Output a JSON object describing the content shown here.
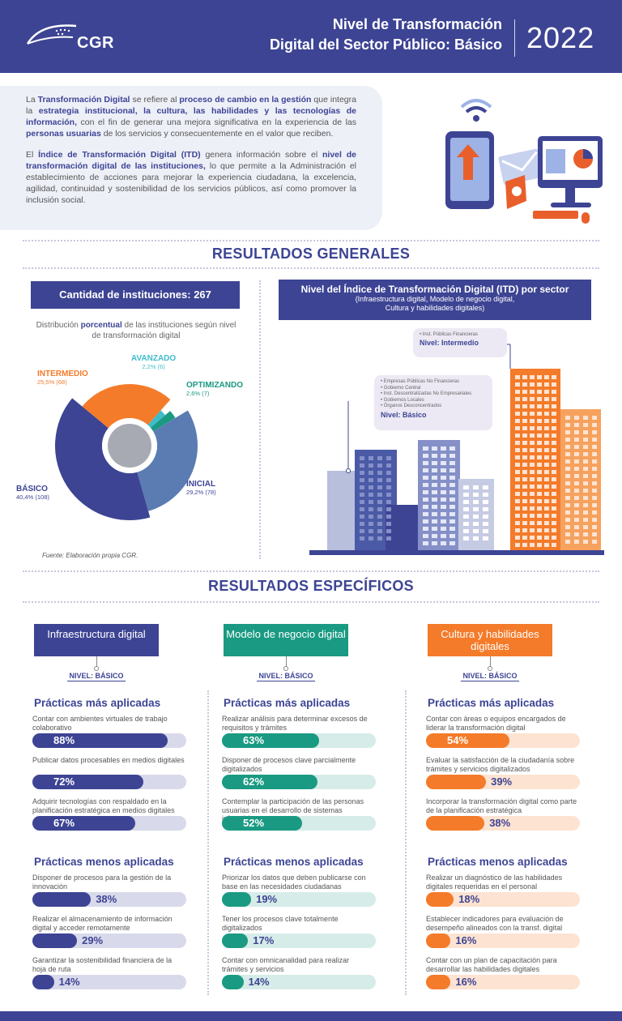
{
  "header": {
    "logo_text": "CGR",
    "title_line1": "Nivel de Transformación",
    "title_line2": "Digital del Sector Público: Básico",
    "year": "2022"
  },
  "intro": {
    "p1": [
      {
        "t": "La ",
        "b": false
      },
      {
        "t": "Transformación Digital",
        "b": true
      },
      {
        "t": " se refiere al ",
        "b": false
      },
      {
        "t": "proceso de cambio en la gestión",
        "b": true
      },
      {
        "t": " que integra la ",
        "b": false
      },
      {
        "t": "estrategia institucional, la cultura, las habilidades y las tecnologías de información,",
        "b": true
      },
      {
        "t": " con el fin de generar una mejora significativa en la experiencia de las ",
        "b": false
      },
      {
        "t": "personas usuarias",
        "b": true
      },
      {
        "t": " de los servicios y consecuentemente en el valor que reciben.",
        "b": false
      }
    ],
    "p2": [
      {
        "t": "El ",
        "b": false
      },
      {
        "t": "Índice de Transformación Digital (ITD)",
        "b": true
      },
      {
        "t": " genera información sobre el ",
        "b": false
      },
      {
        "t": "nivel de transformación digital de las instituciones,",
        "b": true
      },
      {
        "t": " lo que permite a la Administración el establecimiento de acciones para mejorar la experiencia ciudadana, la excelencia, agilidad, continuidad y sostenibilidad de los servicios públicos, así como promover la inclusión social.",
        "b": false
      }
    ]
  },
  "general": {
    "title": "RESULTADOS GENERALES",
    "qty_label": "Cantidad de instituciones: 267",
    "dist_pre": "Distribución ",
    "dist_bold": "porcentual",
    "dist_post": " de las instituciones según nivel de transformación digital",
    "source": "Fuente: Elaboración propia CGR.",
    "donut": [
      {
        "name": "BÁSICO",
        "pct": "40,4% (108)",
        "value": 40.4,
        "color": "#3d4494"
      },
      {
        "name": "INTERMEDIO",
        "pct": "25,5% (68)",
        "value": 25.5,
        "color": "#f47b2a"
      },
      {
        "name": "AVANZADO",
        "pct": "2,2% (6)",
        "value": 2.2,
        "color": "#3fbccb"
      },
      {
        "name": "OPTIMIZANDO",
        "pct": "2,6% (7)",
        "value": 2.6,
        "color": "#1a9a82"
      },
      {
        "name": "INICIAL",
        "pct": "29,2% (78)",
        "value": 29.2,
        "color": "#5b7cb3"
      }
    ],
    "itd_title": "Nivel del Índice de Transformación Digital (ITD) por sector",
    "itd_sub1": "(Infraestructura digital, Modelo de negocio digital,",
    "itd_sub2": "Cultura y habilidades digitales)",
    "bubble_inter_sector": "• Inst. Públicas Financieras",
    "bubble_inter_level": "Nivel: Intermedio",
    "bubble_basic_sectors": [
      "• Empresas Públicas No Financieras",
      "• Gobierno Central",
      "• Inst. Descentralizadas No Empresariales",
      "• Gobiernos Locales",
      "• Órganos Desconcentrados"
    ],
    "bubble_basic_level": "Nivel: Básico"
  },
  "specific": {
    "title": "RESULTADOS ESPECÍFICOS",
    "most_label": "Prácticas más aplicadas",
    "least_label": "Prácticas menos aplicadas",
    "columns": [
      {
        "name": "Infraestructura digital",
        "level": "NIVEL: BÁSICO",
        "color": "#3d4494",
        "light": "#d8d9ea",
        "most": [
          {
            "text": "Contar con ambientes virtuales de trabajo colaborativo",
            "pct": "88%",
            "value": 88
          },
          {
            "text": "Publicar datos procesables en medios digitales",
            "pct": "72%",
            "value": 72
          },
          {
            "text": "Adquirir tecnologías con respaldado en la planificación estratégica en medios digitales",
            "pct": "67%",
            "value": 67
          }
        ],
        "least": [
          {
            "text": "Disponer de procesos para la gestión de la innovación",
            "pct": "38%",
            "value": 38
          },
          {
            "text": "Realizar el almacenamiento de información digital y acceder remotamente",
            "pct": "29%",
            "value": 29
          },
          {
            "text": "Garantizar la sostenibilidad financiera de la hoja de ruta",
            "pct": "14%",
            "value": 14
          }
        ]
      },
      {
        "name": "Modelo de negocio digital",
        "level": "NIVEL: BÁSICO",
        "color": "#1a9a82",
        "light": "#d6ece8",
        "most": [
          {
            "text": "Realizar análisis para determinar excesos de requisitos y trámites",
            "pct": "63%",
            "value": 63
          },
          {
            "text": "Disponer de procesos clave parcialmente digitalizados",
            "pct": "62%",
            "value": 62
          },
          {
            "text": "Contemplar la participación de las personas usuarias en el desarrollo de sistemas informáticos",
            "pct": "52%",
            "value": 52
          }
        ],
        "least": [
          {
            "text": "Priorizar los datos que deben publicarse con base en las necesidades ciudadanas",
            "pct": "19%",
            "value": 19
          },
          {
            "text": "Tener los procesos clave totalmente digitalizados",
            "pct": "17%",
            "value": 17
          },
          {
            "text": "Contar con omnicanalidad para realizar trámites y servicios",
            "pct": "14%",
            "value": 14
          }
        ]
      },
      {
        "name": "Cultura y habilidades digitales",
        "level": "NIVEL: BÁSICO",
        "color": "#f47b2a",
        "light": "#fde3d2",
        "most": [
          {
            "text": "Contar con áreas o equipos encargados de liderar la transformación digital",
            "pct": "54%",
            "value": 54
          },
          {
            "text": "Evaluar la satisfacción de la ciudadanía sobre trámites y servicios digitalizados",
            "pct": "39%",
            "value": 39
          },
          {
            "text": "Incorporar la transformación digital como parte de la planificación estratégica",
            "pct": "38%",
            "value": 38
          }
        ],
        "least": [
          {
            "text": "Realizar un diagnóstico de las habilidades digitales requeridas en el personal",
            "pct": "18%",
            "value": 18
          },
          {
            "text": "Establecer indicadores para evaluación de desempeño alineados con la transf. digital",
            "pct": "16%",
            "value": 16
          },
          {
            "text": "Contar con un plan de capacitación para desarrollar las habilidades digitales",
            "pct": "16%",
            "value": 16
          }
        ]
      }
    ]
  }
}
